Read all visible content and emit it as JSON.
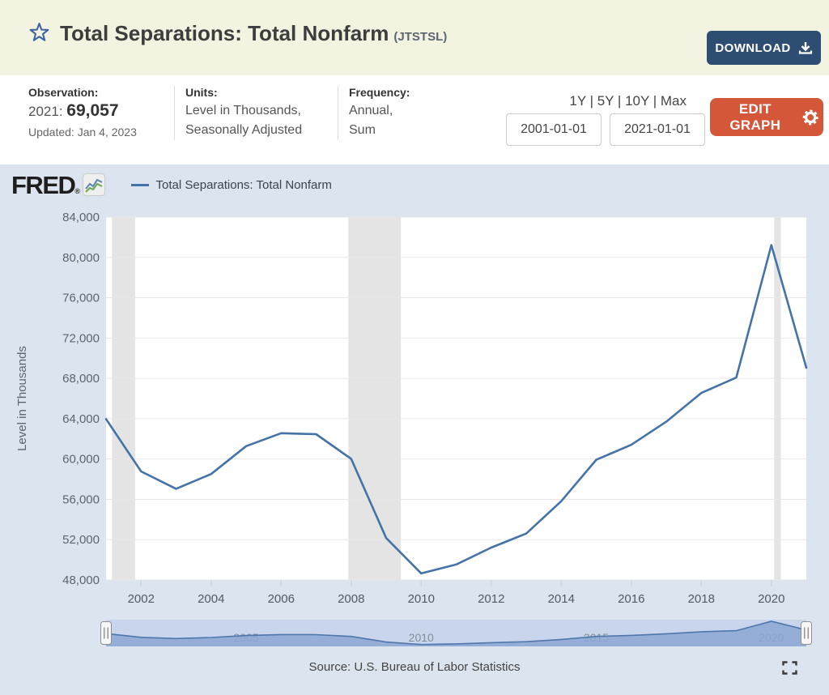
{
  "header": {
    "title": "Total Separations: Total Nonfarm",
    "series_id": "(JTSTSL)",
    "download_label": "DOWNLOAD"
  },
  "meta": {
    "observation": {
      "label": "Observation:",
      "period": "2021:",
      "value": "69,057",
      "updated": "Updated: Jan 4, 2023"
    },
    "units": {
      "label": "Units:",
      "line1": "Level in Thousands,",
      "line2": "Seasonally Adjusted"
    },
    "frequency": {
      "label": "Frequency:",
      "line1": "Annual,",
      "line2": "Sum"
    },
    "range_presets": "1Y | 5Y | 10Y | Max",
    "date_start": "2001-01-01",
    "date_end": "2021-01-01",
    "edit_graph_label": "EDIT GRAPH"
  },
  "chart_header": {
    "logo_text": "FRED",
    "logo_reg": "®",
    "legend_label": "Total Separations: Total Nonfarm"
  },
  "footer": {
    "source": "Source: U.S. Bureau of Labor Statistics"
  },
  "icons": {
    "star": "star-outline-icon",
    "download": "download-tray-icon",
    "gear": "gear-icon",
    "fred_logo_chart": "mini-line-chart-icon",
    "fullscreen": "fullscreen-corners-icon"
  },
  "colors": {
    "header_bg": "#f2f3e0",
    "download_btn": "#2e4d72",
    "edit_btn": "#d4573a",
    "chart_region_bg": "#dce4ef",
    "plot_bg": "#ffffff",
    "series_line": "#4573a7",
    "gridline": "#e7e7e7",
    "recession_band": "#e4e4e4",
    "axis_text": "#5b6570",
    "navigator_bg": "#c9d5ec",
    "navigator_fill": "#8ca7d5",
    "navigator_line": "#4f77ab",
    "navigator_label": "#828d9b",
    "handle_fill": "#f6f6f6",
    "handle_stroke": "#909090"
  },
  "chart_data": {
    "type": "line",
    "title": "Total Separations: Total Nonfarm",
    "ylabel": "Level in Thousands",
    "x": [
      2001,
      2002,
      2003,
      2004,
      2005,
      2006,
      2007,
      2008,
      2009,
      2010,
      2011,
      2012,
      2013,
      2014,
      2015,
      2016,
      2017,
      2018,
      2019,
      2020,
      2021
    ],
    "values": [
      63963,
      58766,
      57046,
      58508,
      61272,
      62563,
      62461,
      60016,
      52162,
      48647,
      49538,
      51213,
      52604,
      55818,
      59929,
      61411,
      63699,
      66555,
      68084,
      81219,
      69057
    ],
    "ylim": [
      48000,
      84000
    ],
    "ytick_step": 4000,
    "xticks": [
      2002,
      2004,
      2006,
      2008,
      2010,
      2012,
      2014,
      2016,
      2018,
      2020
    ],
    "grid": true,
    "legend_position": "top-left",
    "recession_bands": [
      [
        2001.17,
        2001.83
      ],
      [
        2007.92,
        2009.42
      ],
      [
        2020.08,
        2020.27
      ]
    ],
    "navigator_labels": [
      2005,
      2010,
      2015,
      2020
    ]
  }
}
